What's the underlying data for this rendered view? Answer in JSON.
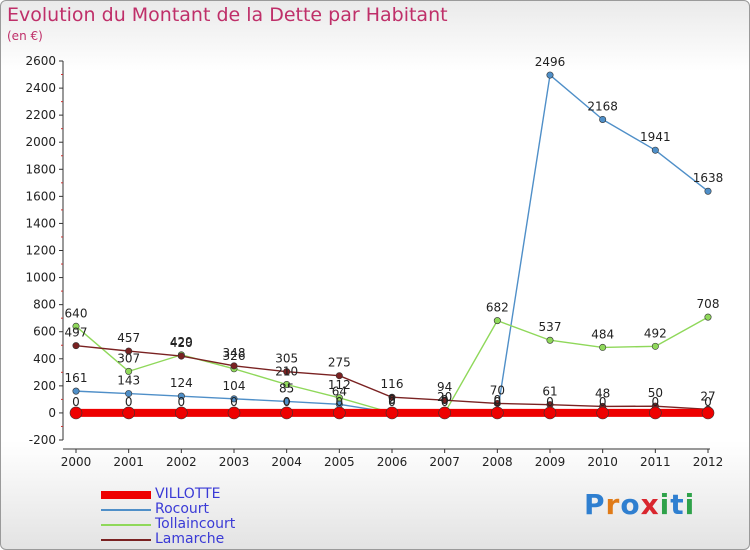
{
  "title": "Evolution du Montant de la Dette par Habitant",
  "subtitle": "(en €)",
  "logo": {
    "text": "Proxiti",
    "letters": [
      "P",
      "r",
      "o",
      "x",
      "i",
      "t",
      "i"
    ],
    "colors": [
      "#2f7fd0",
      "#e07b18",
      "#2f7fd0",
      "#d9262e",
      "#2fa24a",
      "#2f7fd0",
      "#2fa24a"
    ]
  },
  "chart_data": {
    "type": "line",
    "x": [
      2000,
      2001,
      2002,
      2003,
      2004,
      2005,
      2006,
      2007,
      2008,
      2009,
      2010,
      2011,
      2012
    ],
    "ylim": [
      -200,
      2600
    ],
    "yticks": [
      -200,
      0,
      200,
      400,
      600,
      800,
      1000,
      1200,
      1400,
      1600,
      1800,
      2000,
      2200,
      2400,
      2600
    ],
    "grid": false,
    "legend_position": "bottom-left",
    "series": [
      {
        "name": "VILLOTTE",
        "color": "#ee0000",
        "values": [
          0,
          0,
          0,
          0,
          0,
          0,
          0,
          0,
          0,
          0,
          0,
          0,
          0
        ]
      },
      {
        "name": "Rocourt",
        "color": "#4f8fc8",
        "values": [
          161,
          143,
          124,
          104,
          85,
          64,
          2,
          20,
          0,
          2496,
          2168,
          1941,
          1638
        ]
      },
      {
        "name": "Tollaincourt",
        "color": "#8fd85a",
        "values": [
          640,
          307,
          429,
          326,
          210,
          112,
          0,
          0,
          682,
          537,
          484,
          492,
          708
        ]
      },
      {
        "name": "Lamarche",
        "color": "#7a2222",
        "values": [
          497,
          457,
          420,
          348,
          305,
          275,
          116,
          94,
          70,
          61,
          48,
          50,
          27
        ]
      }
    ],
    "data_labels": [
      {
        "series": "Rocourt",
        "labels": [
          "161",
          "143",
          "124",
          "104",
          "85",
          "64",
          "2",
          "20",
          "0",
          "2496",
          "2168",
          "1941",
          "1638"
        ]
      },
      {
        "series": "Tollaincourt",
        "labels": [
          "640",
          "307",
          "429",
          "326",
          "210",
          "112",
          "0",
          "0",
          "682",
          "537",
          "484",
          "492",
          "708"
        ]
      },
      {
        "series": "Lamarche",
        "labels": [
          "497",
          "457",
          "420",
          "348",
          "305",
          "275",
          "116",
          "94",
          "70",
          "61",
          "48",
          "50",
          "27"
        ]
      },
      {
        "series": "VILLOTTE",
        "labels": [
          "0",
          "0",
          "0",
          "0",
          "0",
          "0",
          "0",
          "0",
          "0",
          "0",
          "0",
          "0",
          "0"
        ]
      }
    ]
  }
}
